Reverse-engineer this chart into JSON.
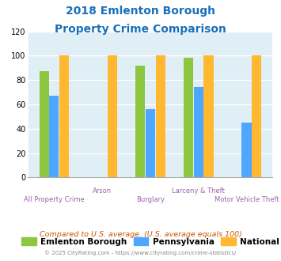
{
  "title_line1": "2018 Emlenton Borough",
  "title_line2": "Property Crime Comparison",
  "title_color": "#1a6fbb",
  "categories": [
    "All Property Crime",
    "Arson",
    "Burglary",
    "Larceny & Theft",
    "Motor Vehicle Theft"
  ],
  "emlenton": [
    87,
    0,
    92,
    98,
    0
  ],
  "pennsylvania": [
    67,
    0,
    56,
    74,
    45
  ],
  "national": [
    100,
    100,
    100,
    100,
    100
  ],
  "colors": {
    "emlenton": "#8dc63f",
    "pennsylvania": "#4da6ff",
    "national": "#ffb830"
  },
  "ylim": [
    0,
    120
  ],
  "yticks": [
    0,
    20,
    40,
    60,
    80,
    100,
    120
  ],
  "bg_color": "#e0eef5",
  "note": "Compared to U.S. average. (U.S. average equals 100)",
  "note_color": "#cc5500",
  "copyright": "© 2025 CityRating.com - https://www.cityrating.com/crime-statistics/",
  "copyright_color": "#888888",
  "xlabel_color": "#9966aa",
  "legend_labels": [
    "Emlenton Borough",
    "Pennsylvania",
    "National"
  ],
  "bar_width": 0.2,
  "bar_gap": 0.01
}
